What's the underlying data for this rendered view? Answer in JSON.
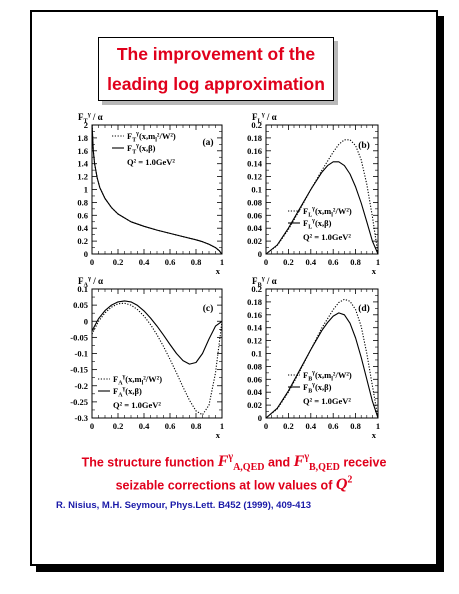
{
  "title": {
    "line1": "The improvement of the",
    "line2": "leading log approximation"
  },
  "caption": {
    "before": "The structure function ",
    "fa_main": "F",
    "fa_sub": "A,QED",
    "fa_sup": "γ",
    "middle": " and ",
    "fb_main": "F",
    "fb_sub": "B,QED",
    "fb_sup": "γ",
    "after": " receive",
    "line2_text": "seizable corrections at low values of ",
    "q2_main": "Q",
    "q2_sup": "2"
  },
  "reference": "R. Nisius, M.H. Seymour, Phys.Lett. B452 (1999), 409-413",
  "colors": {
    "accent": "#e0001b",
    "reference": "#1a1aa8",
    "curve": "#000000"
  },
  "chart_data": [
    {
      "type": "line",
      "panel": "(a)",
      "ylabel": "F_T^γ / α",
      "xlabel": "x",
      "xlim": [
        0,
        1
      ],
      "ylim": [
        0,
        2
      ],
      "xticks": [
        "0",
        "0.2",
        "0.4",
        "0.6",
        "0.8",
        "1"
      ],
      "yticks": [
        "0",
        "0.2",
        "0.4",
        "0.6",
        "0.8",
        "1",
        "1.2",
        "1.4",
        "1.6",
        "1.8",
        "2"
      ],
      "legend": [
        "F_T^γ(x,m_l²/W²)",
        "F_T^γ(x,β)",
        "Q² = 1.0GeV²"
      ],
      "legend_position": "top-right",
      "series": [
        {
          "name": "F_T^γ(x,m_l²/W²)",
          "style": "dotted",
          "x": [
            0.001,
            0.01,
            0.02,
            0.04,
            0.06,
            0.1,
            0.15,
            0.2,
            0.3,
            0.4,
            0.5,
            0.6,
            0.7,
            0.8,
            0.85,
            0.9,
            0.95,
            0.98,
            0.995
          ],
          "y": [
            2.0,
            1.6,
            1.4,
            1.18,
            1.03,
            0.86,
            0.72,
            0.62,
            0.5,
            0.43,
            0.37,
            0.32,
            0.27,
            0.22,
            0.19,
            0.15,
            0.1,
            0.05,
            0.01
          ]
        },
        {
          "name": "F_T^γ(x,β)",
          "style": "solid",
          "x": [
            0.001,
            0.01,
            0.02,
            0.04,
            0.06,
            0.1,
            0.15,
            0.2,
            0.3,
            0.4,
            0.5,
            0.6,
            0.7,
            0.8,
            0.85,
            0.9,
            0.95,
            0.98,
            0.995
          ],
          "y": [
            2.0,
            1.6,
            1.4,
            1.18,
            1.03,
            0.86,
            0.72,
            0.62,
            0.5,
            0.43,
            0.37,
            0.32,
            0.27,
            0.22,
            0.19,
            0.15,
            0.1,
            0.05,
            0.01
          ]
        }
      ]
    },
    {
      "type": "line",
      "panel": "(b)",
      "ylabel": "F_L^γ / α",
      "xlabel": "x",
      "xlim": [
        0,
        1
      ],
      "ylim": [
        0,
        0.2
      ],
      "xticks": [
        "0",
        "0.2",
        "0.4",
        "0.6",
        "0.8",
        "1"
      ],
      "yticks": [
        "0",
        "0.02",
        "0.04",
        "0.06",
        "0.08",
        "0.1",
        "0.12",
        "0.14",
        "0.16",
        "0.18",
        "0.2"
      ],
      "legend": [
        "F_L^γ(x,m_l²/W²)",
        "F_L^γ(x,β)",
        "Q² = 1.0GeV²"
      ],
      "legend_position": "bottom-right",
      "series": [
        {
          "name": "F_L^γ(x,m_l²/W²)",
          "style": "dotted",
          "x": [
            0,
            0.1,
            0.2,
            0.3,
            0.4,
            0.5,
            0.6,
            0.65,
            0.7,
            0.75,
            0.8,
            0.85,
            0.9,
            0.95,
            1.0
          ],
          "y": [
            0,
            0.013,
            0.038,
            0.068,
            0.1,
            0.13,
            0.158,
            0.17,
            0.177,
            0.177,
            0.168,
            0.146,
            0.108,
            0.058,
            0
          ]
        },
        {
          "name": "F_L^γ(x,β)",
          "style": "solid",
          "x": [
            0,
            0.1,
            0.2,
            0.3,
            0.4,
            0.5,
            0.55,
            0.6,
            0.65,
            0.7,
            0.75,
            0.8,
            0.85,
            0.9,
            0.95,
            1.0
          ],
          "y": [
            0,
            0.014,
            0.04,
            0.07,
            0.1,
            0.127,
            0.137,
            0.143,
            0.143,
            0.137,
            0.124,
            0.104,
            0.079,
            0.05,
            0.02,
            0
          ]
        }
      ]
    },
    {
      "type": "line",
      "panel": "(c)",
      "ylabel": "F_A^γ / α",
      "xlabel": "x",
      "xlim": [
        0,
        1
      ],
      "ylim": [
        -0.3,
        0.1
      ],
      "xticks": [
        "0",
        "0.2",
        "0.4",
        "0.6",
        "0.8",
        "1"
      ],
      "yticks": [
        "-0.3",
        "-0.25",
        "-0.2",
        "-0.15",
        "-0.1",
        "-0.05",
        "0",
        "0.05",
        "0.1"
      ],
      "legend": [
        "F_A^γ(x,m_l²/W²)",
        "F_A^γ(x,β)",
        "Q² = 1.0GeV²"
      ],
      "legend_position": "bottom-left",
      "series": [
        {
          "name": "F_A^γ(x,m_l²/W²)",
          "style": "dotted",
          "x": [
            0,
            0.05,
            0.1,
            0.15,
            0.2,
            0.25,
            0.3,
            0.35,
            0.4,
            0.45,
            0.5,
            0.55,
            0.6,
            0.65,
            0.7,
            0.75,
            0.8,
            0.85,
            0.9,
            0.95,
            1.0
          ],
          "y": [
            -0.04,
            0.0,
            0.026,
            0.044,
            0.054,
            0.056,
            0.05,
            0.036,
            0.016,
            -0.01,
            -0.042,
            -0.078,
            -0.118,
            -0.16,
            -0.204,
            -0.245,
            -0.278,
            -0.29,
            -0.26,
            -0.16,
            0.0
          ]
        },
        {
          "name": "F_A^γ(x,β)",
          "style": "solid",
          "x": [
            0,
            0.05,
            0.1,
            0.15,
            0.2,
            0.25,
            0.3,
            0.35,
            0.4,
            0.45,
            0.5,
            0.55,
            0.6,
            0.65,
            0.7,
            0.75,
            0.8,
            0.85,
            0.9,
            0.95,
            1.0
          ],
          "y": [
            -0.03,
            0.008,
            0.033,
            0.05,
            0.06,
            0.063,
            0.06,
            0.049,
            0.032,
            0.01,
            -0.015,
            -0.043,
            -0.072,
            -0.1,
            -0.122,
            -0.133,
            -0.128,
            -0.1,
            -0.055,
            -0.015,
            0.0
          ]
        }
      ]
    },
    {
      "type": "line",
      "panel": "(d)",
      "ylabel": "F_B^γ / α",
      "xlabel": "x",
      "xlim": [
        0,
        1
      ],
      "ylim": [
        0,
        0.2
      ],
      "xticks": [
        "0",
        "0.2",
        "0.4",
        "0.6",
        "0.8",
        "1"
      ],
      "yticks": [
        "0",
        "0.02",
        "0.04",
        "0.06",
        "0.08",
        "0.1",
        "0.12",
        "0.14",
        "0.16",
        "0.18",
        "0.2"
      ],
      "legend": [
        "F_B^γ(x,m_l²/W²)",
        "F_B^γ(x,β)",
        "Q² = 1.0GeV²"
      ],
      "legend_position": "bottom-right",
      "series": [
        {
          "name": "F_B^γ(x,m_l²/W²)",
          "style": "dotted",
          "x": [
            0,
            0.1,
            0.2,
            0.3,
            0.4,
            0.5,
            0.6,
            0.65,
            0.7,
            0.75,
            0.8,
            0.85,
            0.9,
            0.95,
            1.0
          ],
          "y": [
            0,
            0.014,
            0.04,
            0.072,
            0.106,
            0.14,
            0.168,
            0.179,
            0.184,
            0.181,
            0.168,
            0.142,
            0.1,
            0.05,
            0
          ]
        },
        {
          "name": "F_B^γ(x,β)",
          "style": "solid",
          "x": [
            0,
            0.1,
            0.2,
            0.3,
            0.4,
            0.5,
            0.55,
            0.6,
            0.65,
            0.7,
            0.75,
            0.8,
            0.85,
            0.9,
            0.95,
            1.0
          ],
          "y": [
            0,
            0.015,
            0.042,
            0.074,
            0.106,
            0.136,
            0.148,
            0.158,
            0.163,
            0.16,
            0.147,
            0.124,
            0.094,
            0.06,
            0.026,
            0
          ]
        }
      ]
    }
  ]
}
